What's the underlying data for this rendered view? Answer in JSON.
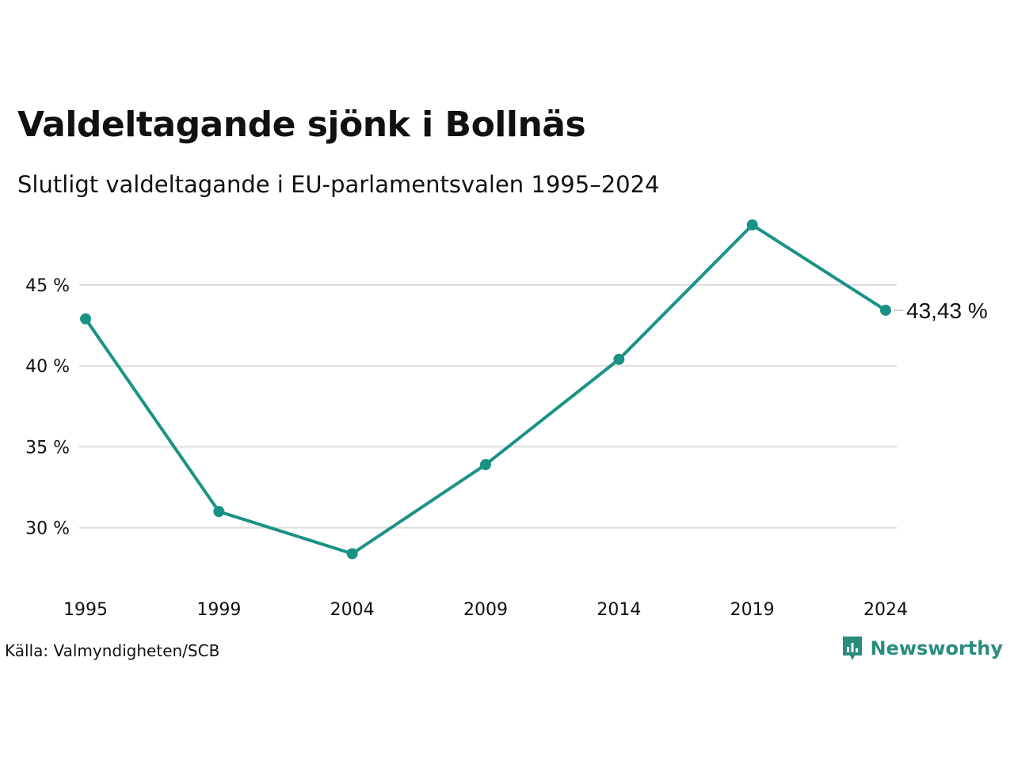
{
  "title": "Valdeltagande sjönk i Bollnäs",
  "subtitle": "Slutligt valdeltagande i EU-parlamentsvalen 1995–2024",
  "source": "Källa: Valmyndigheten/SCB",
  "brand": {
    "name": "Newsworthy",
    "icon": "newsworthy-logo-icon"
  },
  "colors": {
    "line": "#1a9285",
    "grid": "#dddddd",
    "text": "#111111",
    "brand": "#2a8c7e"
  },
  "chart_data": {
    "type": "line",
    "x": [
      "1995",
      "1999",
      "2004",
      "2009",
      "2014",
      "2019",
      "2024"
    ],
    "series": [
      {
        "values": [
          42.9,
          31.0,
          28.4,
          33.9,
          40.4,
          48.7,
          43.43
        ]
      }
    ],
    "ylim": [
      27.0,
      49.0
    ],
    "yticks": [
      30,
      35,
      40,
      45
    ],
    "ytick_labels": [
      "30 %",
      "35 %",
      "40 %",
      "45 %"
    ],
    "end_label": "43,43 %",
    "grid": true
  }
}
